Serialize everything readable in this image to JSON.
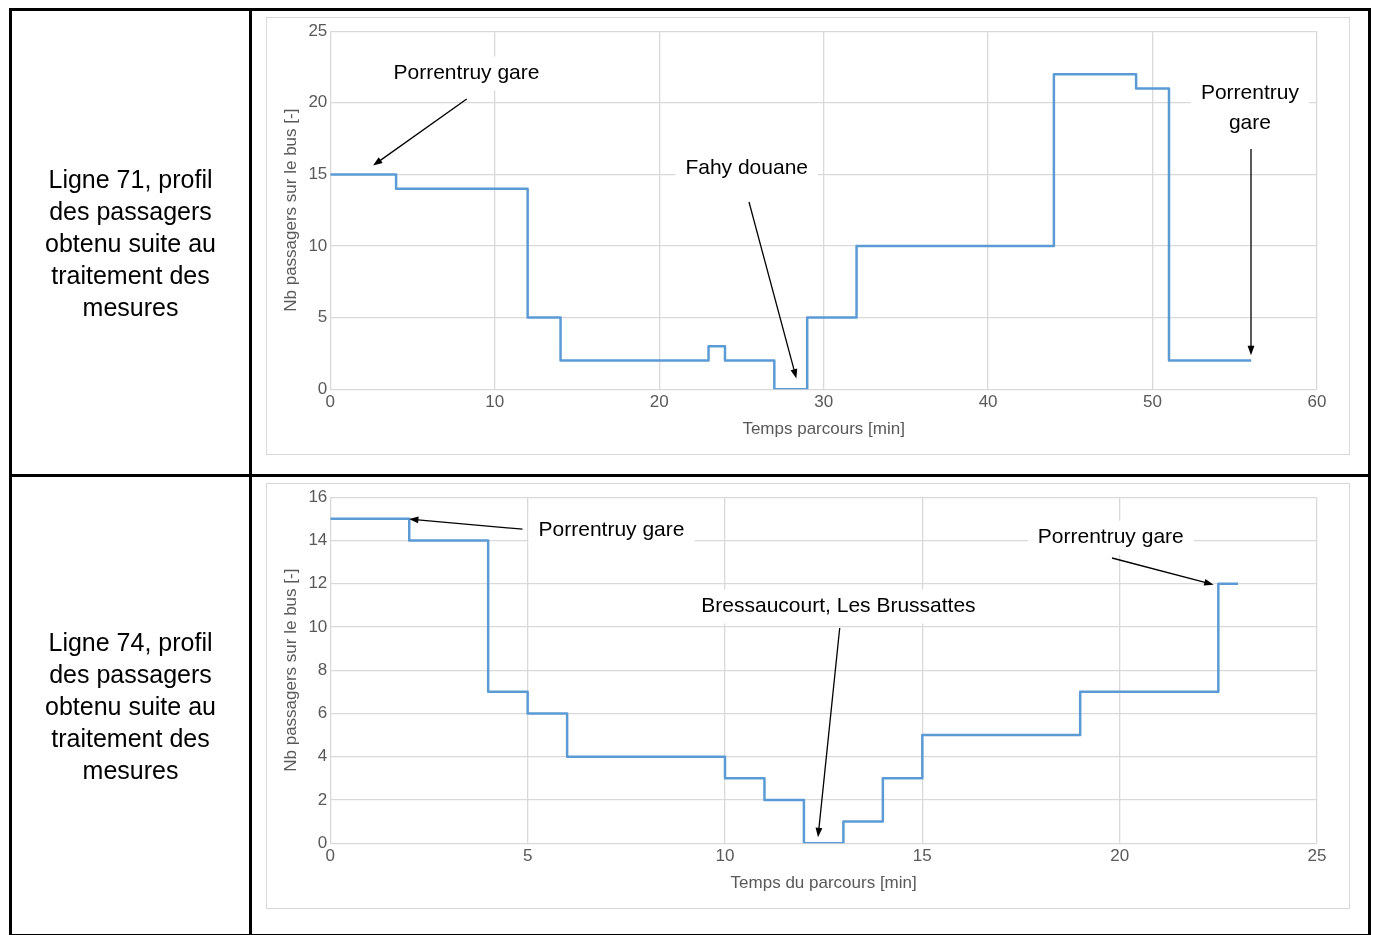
{
  "chart_data": [
    {
      "type": "step",
      "title": "Ligne 71, profil des passagers obtenu suite au traitement des mesures",
      "xlabel": "Temps parcours [min]",
      "ylabel": "Nb passagers sur le bus [-]",
      "series": [
        {
          "color": "#5b9bd5",
          "x": [
            0,
            4,
            12,
            14,
            23,
            24,
            27,
            29,
            32,
            44,
            49,
            51,
            56
          ],
          "values": [
            15,
            14,
            5,
            2,
            3,
            2,
            0,
            5,
            10,
            22,
            21,
            2,
            2
          ]
        }
      ],
      "xlim": [
        0,
        60
      ],
      "xticks": [
        0,
        10,
        20,
        30,
        40,
        50,
        60
      ],
      "ylim": [
        0,
        25
      ],
      "yticks": [
        0,
        5,
        10,
        15,
        20,
        25
      ],
      "grid": true,
      "legend": false,
      "annotations": [
        "Porrentruy gare",
        "Fahy douane",
        "Porrentruy gare"
      ]
    },
    {
      "type": "step",
      "title": "Ligne 74, profil des passagers obtenu suite au traitement des mesures",
      "xlabel": "Temps du parcours [min]",
      "ylabel": "Nb passagers sur le bus [-]",
      "series": [
        {
          "color": "#5b9bd5",
          "x": [
            0,
            2,
            4,
            5,
            6,
            10,
            11,
            12,
            13,
            14,
            15,
            19,
            22.5,
            23
          ],
          "values": [
            15,
            14,
            7,
            6,
            4,
            3,
            2,
            0,
            1,
            3,
            5,
            7,
            12,
            12
          ]
        }
      ],
      "xlim": [
        0,
        25
      ],
      "xticks": [
        0,
        5,
        10,
        15,
        20,
        25
      ],
      "ylim": [
        0,
        16
      ],
      "yticks": [
        0,
        2,
        4,
        6,
        8,
        10,
        12,
        14,
        16
      ],
      "grid": true,
      "legend": false,
      "annotations": [
        {
          "text": "Porrentruy gare",
          "x": 2,
          "y": 15
        },
        "Bressaucourt, Les Brussattes",
        "Porrentruy gare"
      ]
    }
  ]
}
